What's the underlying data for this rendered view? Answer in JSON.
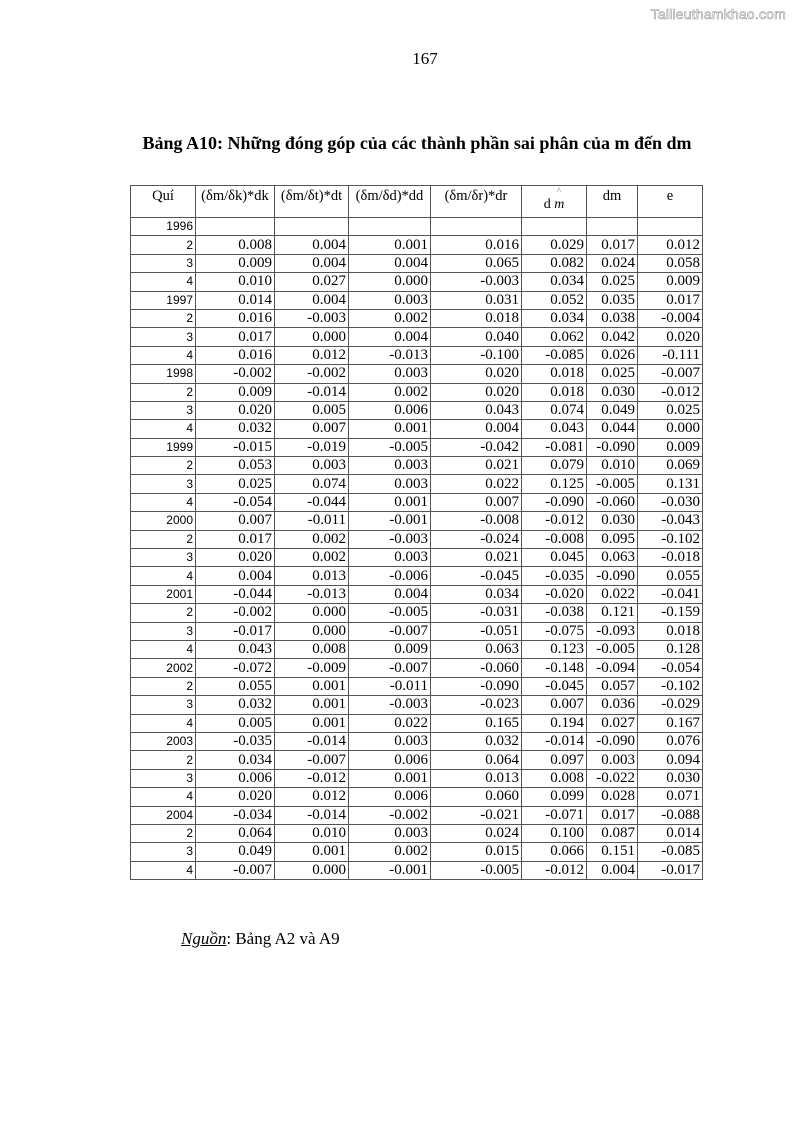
{
  "watermark": "Tailieuthamkhao.com",
  "page_number": "167",
  "title": "Bảng A10: Những đóng góp của các thành phần sai phân của m đến dm",
  "table": {
    "headers": [
      "Quí",
      "(δm/δk)*dk",
      "(δm/δt)*dt",
      "(δm/δd)*dd",
      "(δm/δr)*dr",
      "dm",
      "dm",
      "e"
    ],
    "hat_symbol": "^",
    "rows": [
      [
        "1996",
        "",
        "",
        "",
        "",
        "",
        "",
        ""
      ],
      [
        "2",
        "0.008",
        "0.004",
        "0.001",
        "0.016",
        "0.029",
        "0.017",
        "0.012"
      ],
      [
        "3",
        "0.009",
        "0.004",
        "0.004",
        "0.065",
        "0.082",
        "0.024",
        "0.058"
      ],
      [
        "4",
        "0.010",
        "0.027",
        "0.000",
        "-0.003",
        "0.034",
        "0.025",
        "0.009"
      ],
      [
        "1997",
        "0.014",
        "0.004",
        "0.003",
        "0.031",
        "0.052",
        "0.035",
        "0.017"
      ],
      [
        "2",
        "0.016",
        "-0.003",
        "0.002",
        "0.018",
        "0.034",
        "0.038",
        "-0.004"
      ],
      [
        "3",
        "0.017",
        "0.000",
        "0.004",
        "0.040",
        "0.062",
        "0.042",
        "0.020"
      ],
      [
        "4",
        "0.016",
        "0.012",
        "-0.013",
        "-0.100",
        "-0.085",
        "0.026",
        "-0.111"
      ],
      [
        "1998",
        "-0.002",
        "-0.002",
        "0.003",
        "0.020",
        "0.018",
        "0.025",
        "-0.007"
      ],
      [
        "2",
        "0.009",
        "-0.014",
        "0.002",
        "0.020",
        "0.018",
        "0.030",
        "-0.012"
      ],
      [
        "3",
        "0.020",
        "0.005",
        "0.006",
        "0.043",
        "0.074",
        "0.049",
        "0.025"
      ],
      [
        "4",
        "0.032",
        "0.007",
        "0.001",
        "0.004",
        "0.043",
        "0.044",
        "0.000"
      ],
      [
        "1999",
        "-0.015",
        "-0.019",
        "-0.005",
        "-0.042",
        "-0.081",
        "-0.090",
        "0.009"
      ],
      [
        "2",
        "0.053",
        "0.003",
        "0.003",
        "0.021",
        "0.079",
        "0.010",
        "0.069"
      ],
      [
        "3",
        "0.025",
        "0.074",
        "0.003",
        "0.022",
        "0.125",
        "-0.005",
        "0.131"
      ],
      [
        "4",
        "-0.054",
        "-0.044",
        "0.001",
        "0.007",
        "-0.090",
        "-0.060",
        "-0.030"
      ],
      [
        "2000",
        "0.007",
        "-0.011",
        "-0.001",
        "-0.008",
        "-0.012",
        "0.030",
        "-0.043"
      ],
      [
        "2",
        "0.017",
        "0.002",
        "-0.003",
        "-0.024",
        "-0.008",
        "0.095",
        "-0.102"
      ],
      [
        "3",
        "0.020",
        "0.002",
        "0.003",
        "0.021",
        "0.045",
        "0.063",
        "-0.018"
      ],
      [
        "4",
        "0.004",
        "0.013",
        "-0.006",
        "-0.045",
        "-0.035",
        "-0.090",
        "0.055"
      ],
      [
        "2001",
        "-0.044",
        "-0.013",
        "0.004",
        "0.034",
        "-0.020",
        "0.022",
        "-0.041"
      ],
      [
        "2",
        "-0.002",
        "0.000",
        "-0.005",
        "-0.031",
        "-0.038",
        "0.121",
        "-0.159"
      ],
      [
        "3",
        "-0.017",
        "0.000",
        "-0.007",
        "-0.051",
        "-0.075",
        "-0.093",
        "0.018"
      ],
      [
        "4",
        "0.043",
        "0.008",
        "0.009",
        "0.063",
        "0.123",
        "-0.005",
        "0.128"
      ],
      [
        "2002",
        "-0.072",
        "-0.009",
        "-0.007",
        "-0.060",
        "-0.148",
        "-0.094",
        "-0.054"
      ],
      [
        "2",
        "0.055",
        "0.001",
        "-0.011",
        "-0.090",
        "-0.045",
        "0.057",
        "-0.102"
      ],
      [
        "3",
        "0.032",
        "0.001",
        "-0.003",
        "-0.023",
        "0.007",
        "0.036",
        "-0.029"
      ],
      [
        "4",
        "0.005",
        "0.001",
        "0.022",
        "0.165",
        "0.194",
        "0.027",
        "0.167"
      ],
      [
        "2003",
        "-0.035",
        "-0.014",
        "0.003",
        "0.032",
        "-0.014",
        "-0.090",
        "0.076"
      ],
      [
        "2",
        "0.034",
        "-0.007",
        "0.006",
        "0.064",
        "0.097",
        "0.003",
        "0.094"
      ],
      [
        "3",
        "0.006",
        "-0.012",
        "0.001",
        "0.013",
        "0.008",
        "-0.022",
        "0.030"
      ],
      [
        "4",
        "0.020",
        "0.012",
        "0.006",
        "0.060",
        "0.099",
        "0.028",
        "0.071"
      ],
      [
        "2004",
        "-0.034",
        "-0.014",
        "-0.002",
        "-0.021",
        "-0.071",
        "0.017",
        "-0.088"
      ],
      [
        "2",
        "0.064",
        "0.010",
        "0.003",
        "0.024",
        "0.100",
        "0.087",
        "0.014"
      ],
      [
        "3",
        "0.049",
        "0.001",
        "0.002",
        "0.015",
        "0.066",
        "0.151",
        "-0.085"
      ],
      [
        "4",
        "-0.007",
        "0.000",
        "-0.001",
        "-0.005",
        "-0.012",
        "0.004",
        "-0.017"
      ]
    ]
  },
  "source": {
    "label": "Nguồn",
    "text": ": Bảng A2 và A9"
  }
}
